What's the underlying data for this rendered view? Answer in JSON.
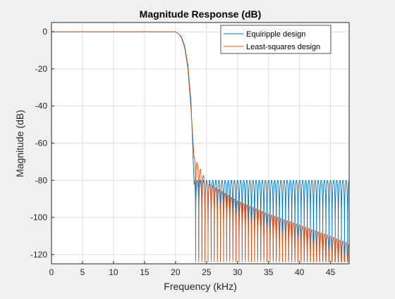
{
  "chart_data": {
    "type": "line",
    "title": "Magnitude Response (dB)",
    "xlabel": "Frequency (kHz)",
    "ylabel": "Magnitude (dB)",
    "xlim": [
      0,
      48
    ],
    "ylim": [
      -125,
      5
    ],
    "xticks": [
      0,
      5,
      10,
      15,
      20,
      25,
      30,
      35,
      40,
      45
    ],
    "yticks": [
      0,
      -20,
      -40,
      -60,
      -80,
      -100,
      -120
    ],
    "grid": true,
    "legend_position": "top-right",
    "passband_edge_khz": 20,
    "stopband_edge_khz": 23,
    "series": [
      {
        "name": "Equiripple design",
        "color": "#0072bd",
        "passband_db": 0,
        "transition": [
          [
            20,
            0
          ],
          [
            20.5,
            -1
          ],
          [
            21,
            -3
          ],
          [
            21.5,
            -8
          ],
          [
            22,
            -18
          ],
          [
            22.5,
            -38
          ],
          [
            23,
            -82
          ]
        ],
        "stopband_envelope_db": [
          [
            23,
            -80
          ],
          [
            48,
            -80
          ]
        ],
        "stopband_lobe_spacing_khz": 0.5,
        "stopband_null_db": -122
      },
      {
        "name": "Least-squares design",
        "color": "#d95319",
        "passband_db": 0,
        "transition": [
          [
            20,
            0
          ],
          [
            20.5,
            -1
          ],
          [
            21,
            -3.5
          ],
          [
            21.5,
            -9
          ],
          [
            22,
            -20
          ],
          [
            22.5,
            -42
          ],
          [
            23,
            -68
          ]
        ],
        "stopband_envelope_db": [
          [
            23,
            -67
          ],
          [
            25,
            -81
          ],
          [
            30,
            -91
          ],
          [
            35,
            -98
          ],
          [
            40,
            -104
          ],
          [
            45,
            -110
          ],
          [
            48,
            -114
          ]
        ],
        "stopband_lobe_spacing_khz": 0.5,
        "stopband_null_db": -124
      }
    ]
  }
}
